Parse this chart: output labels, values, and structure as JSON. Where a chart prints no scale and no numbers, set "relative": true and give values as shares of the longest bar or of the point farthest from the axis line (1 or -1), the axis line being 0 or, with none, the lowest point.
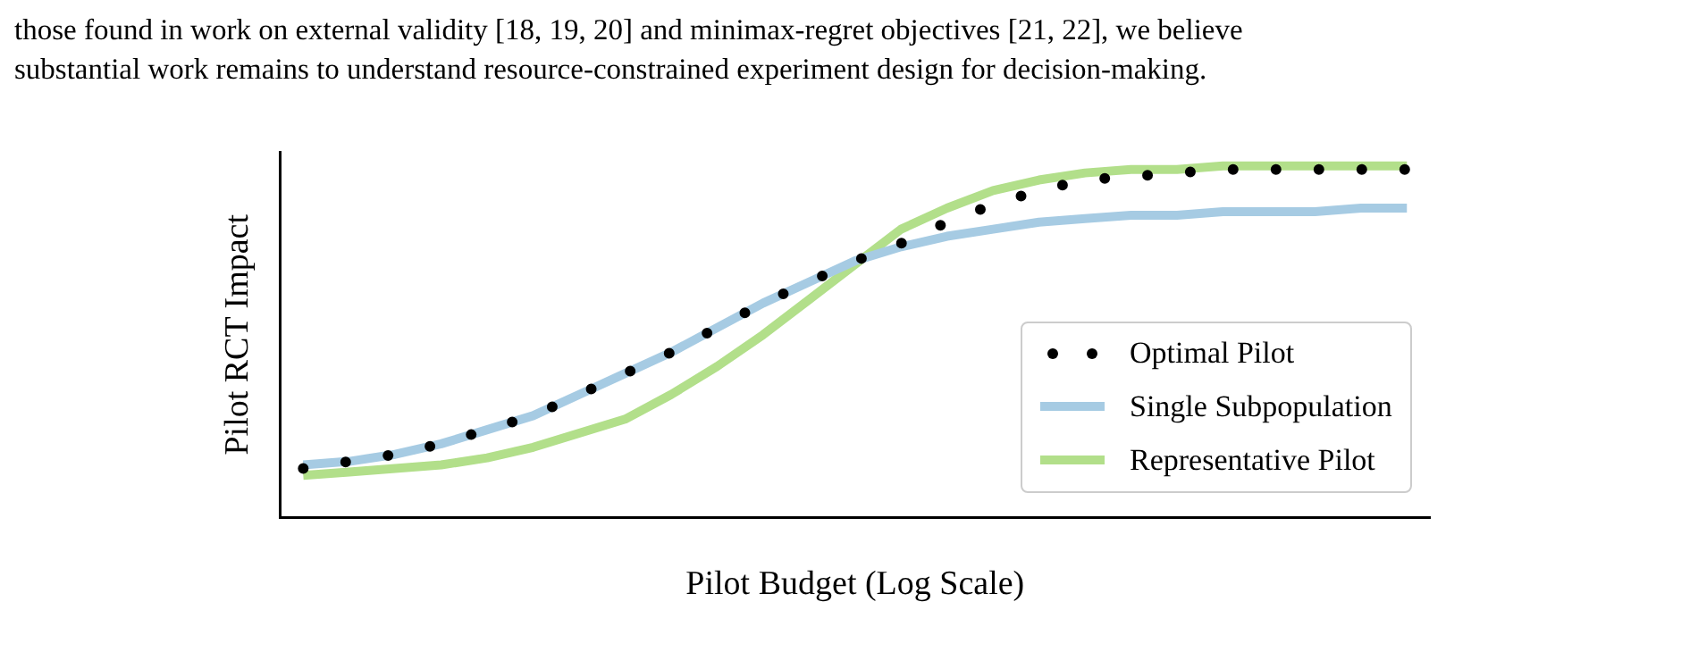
{
  "chart_data": {
    "type": "line",
    "relative": true,
    "xlabel": "Pilot Budget (Log Scale)",
    "ylabel": "Pilot RCT Impact",
    "legend": "bottom right",
    "grid": false,
    "annotations": [
      "those found in work on external validity [18, 19, 20] and minimax-regret objectives [21, 22], we believe",
      "substantial work remains to understand resource-constrained experiment design for decision-making."
    ],
    "categories": [
      null,
      null,
      null,
      null,
      null,
      null,
      null,
      null,
      null,
      null,
      null,
      null,
      null,
      null,
      null,
      null,
      null,
      null,
      null,
      null,
      null,
      null,
      null,
      null,
      null
    ],
    "series": [
      {
        "name": "Optimal Pilot",
        "line_style": "dotted",
        "color": "#000000",
        "values": [
          0.14,
          0.16,
          0.18,
          0.21,
          0.25,
          0.29,
          0.35,
          0.41,
          0.47,
          0.54,
          0.61,
          0.67,
          0.73,
          0.78,
          0.84,
          0.89,
          0.93,
          0.96,
          0.97,
          0.98,
          0.99,
          0.99,
          0.99,
          0.99,
          0.99
        ]
      },
      {
        "name": "Single Subpopulation",
        "color": "#a6cbe3",
        "values": [
          0.15,
          0.16,
          0.18,
          0.21,
          0.25,
          0.29,
          0.35,
          0.41,
          0.47,
          0.54,
          0.61,
          0.67,
          0.73,
          0.77,
          0.8,
          0.82,
          0.84,
          0.85,
          0.86,
          0.86,
          0.87,
          0.87,
          0.87,
          0.88,
          0.88
        ]
      },
      {
        "name": "Representative Pilot",
        "color": "#b2df8a",
        "values": [
          0.12,
          0.13,
          0.14,
          0.15,
          0.17,
          0.2,
          0.24,
          0.28,
          0.35,
          0.43,
          0.52,
          0.62,
          0.72,
          0.82,
          0.88,
          0.93,
          0.96,
          0.98,
          0.99,
          0.99,
          1,
          1,
          1,
          1,
          1
        ]
      }
    ]
  }
}
